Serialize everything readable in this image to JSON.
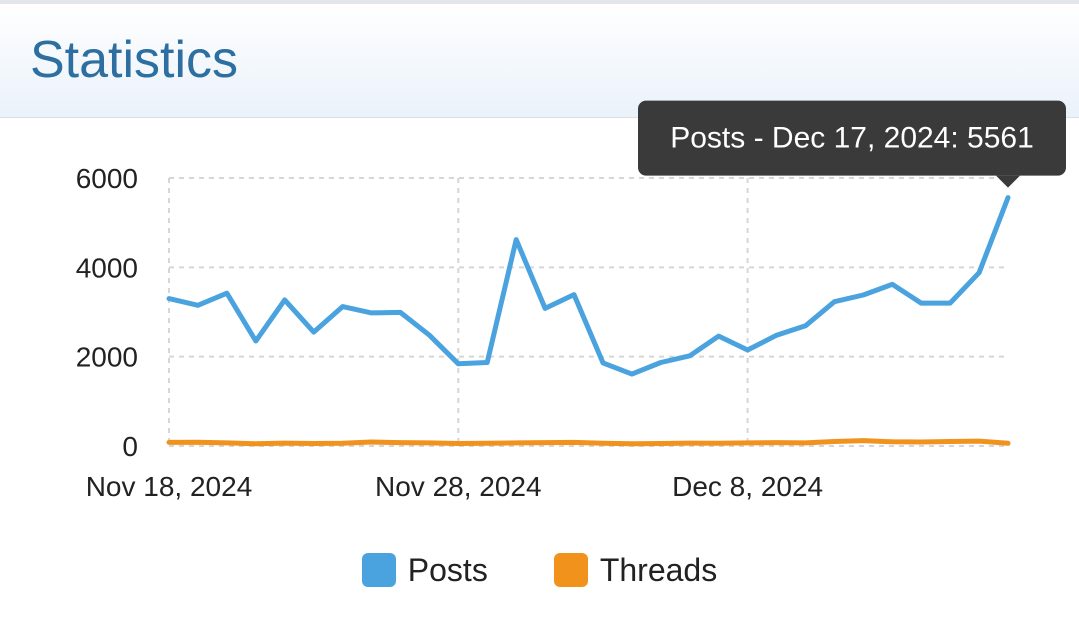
{
  "header": {
    "title": "Statistics"
  },
  "chart_data": {
    "type": "line",
    "x": [
      "Nov 18, 2024",
      "Nov 19, 2024",
      "Nov 20, 2024",
      "Nov 21, 2024",
      "Nov 22, 2024",
      "Nov 23, 2024",
      "Nov 24, 2024",
      "Nov 25, 2024",
      "Nov 26, 2024",
      "Nov 27, 2024",
      "Nov 28, 2024",
      "Nov 29, 2024",
      "Nov 30, 2024",
      "Dec 1, 2024",
      "Dec 2, 2024",
      "Dec 3, 2024",
      "Dec 4, 2024",
      "Dec 5, 2024",
      "Dec 6, 2024",
      "Dec 7, 2024",
      "Dec 8, 2024",
      "Dec 9, 2024",
      "Dec 10, 2024",
      "Dec 11, 2024",
      "Dec 12, 2024",
      "Dec 13, 2024",
      "Dec 14, 2024",
      "Dec 15, 2024",
      "Dec 16, 2024",
      "Dec 17, 2024"
    ],
    "series": [
      {
        "name": "Posts",
        "color": "#4aa3df",
        "values": [
          3300,
          3150,
          3420,
          2350,
          3270,
          2550,
          3120,
          2980,
          2990,
          2480,
          1840,
          1870,
          4620,
          3080,
          3390,
          1860,
          1610,
          1870,
          2020,
          2460,
          2150,
          2480,
          2690,
          3230,
          3380,
          3620,
          3200,
          3200,
          3880,
          5561
        ]
      },
      {
        "name": "Threads",
        "color": "#f0921c",
        "values": [
          80,
          85,
          70,
          50,
          65,
          55,
          60,
          90,
          75,
          70,
          55,
          60,
          70,
          75,
          80,
          60,
          50,
          55,
          65,
          60,
          70,
          75,
          70,
          100,
          120,
          95,
          90,
          100,
          110,
          60
        ]
      }
    ],
    "ylim": [
      0,
      6000
    ],
    "yticks": [
      "0",
      "2000",
      "4000",
      "6000"
    ],
    "xticks": [
      {
        "label": "Nov 18, 2024",
        "index": 0
      },
      {
        "label": "Nov 28, 2024",
        "index": 10
      },
      {
        "label": "Dec 8, 2024",
        "index": 20
      }
    ],
    "grid": true,
    "legend_position": "bottom",
    "tooltip": {
      "series": "Posts",
      "index": 29,
      "text": "Posts - Dec 17, 2024: 5561"
    }
  }
}
